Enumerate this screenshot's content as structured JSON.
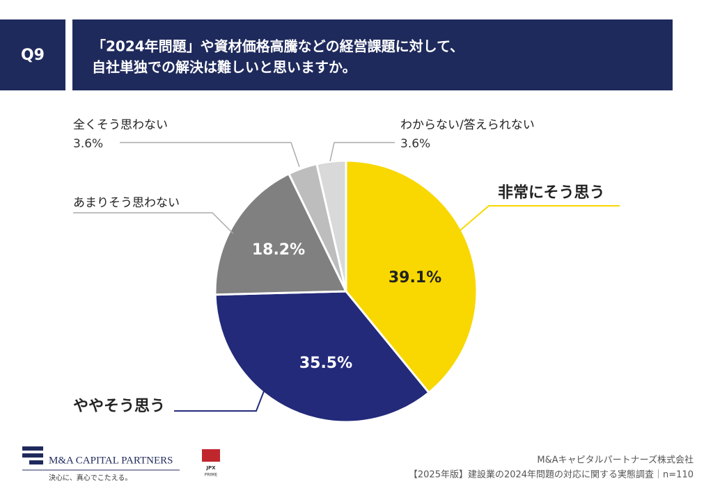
{
  "header": {
    "badge": "Q9",
    "title_lines": [
      "「2024年問題」や資材価格高騰などの経営課題に対して、",
      "自社単独での解決は難しいと思いますか。"
    ]
  },
  "chart_data": {
    "type": "pie",
    "categories": [
      "非常にそう思う",
      "ややそう思う",
      "あまりそう思わない",
      "全くそう思わない",
      "わからない/答えられない"
    ],
    "values": [
      39.1,
      35.5,
      18.2,
      3.6,
      3.6
    ],
    "value_labels": [
      "39.1%",
      "35.5%",
      "18.2%",
      "3.6%",
      "3.6%"
    ],
    "colors": [
      "#f8d800",
      "#232a7a",
      "#808080",
      "#bdbdbd",
      "#d9d9d9"
    ]
  },
  "footer": {
    "logo": "M&A CAPITAL PARTNERS",
    "slogan": "決心に、真心でこたえる。",
    "jpx": "JPX",
    "prime": "PRIME",
    "company": "M&Aキャピタルパートナーズ株式会社",
    "source": "【2025年版】建設業の2024年問題の対応に関する実態調査｜n=110"
  }
}
